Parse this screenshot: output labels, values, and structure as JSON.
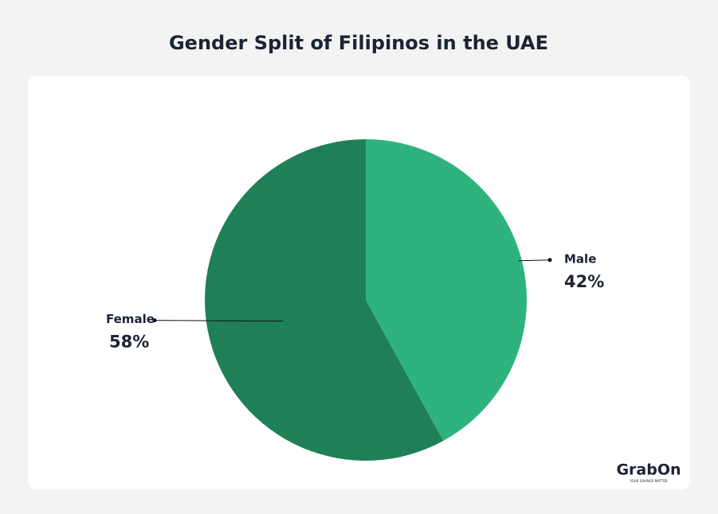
{
  "chart_data": {
    "type": "pie",
    "title": "Gender Split of Filipinos in the UAE",
    "categories": [
      "Male",
      "Female"
    ],
    "values": [
      42,
      58
    ],
    "value_labels": [
      "42%",
      "58%"
    ],
    "colors": [
      "#2fb37e",
      "#1f8058"
    ]
  },
  "logo": {
    "text": "GrabOn",
    "tagline": "YOUR SAVINGS MATTER"
  }
}
